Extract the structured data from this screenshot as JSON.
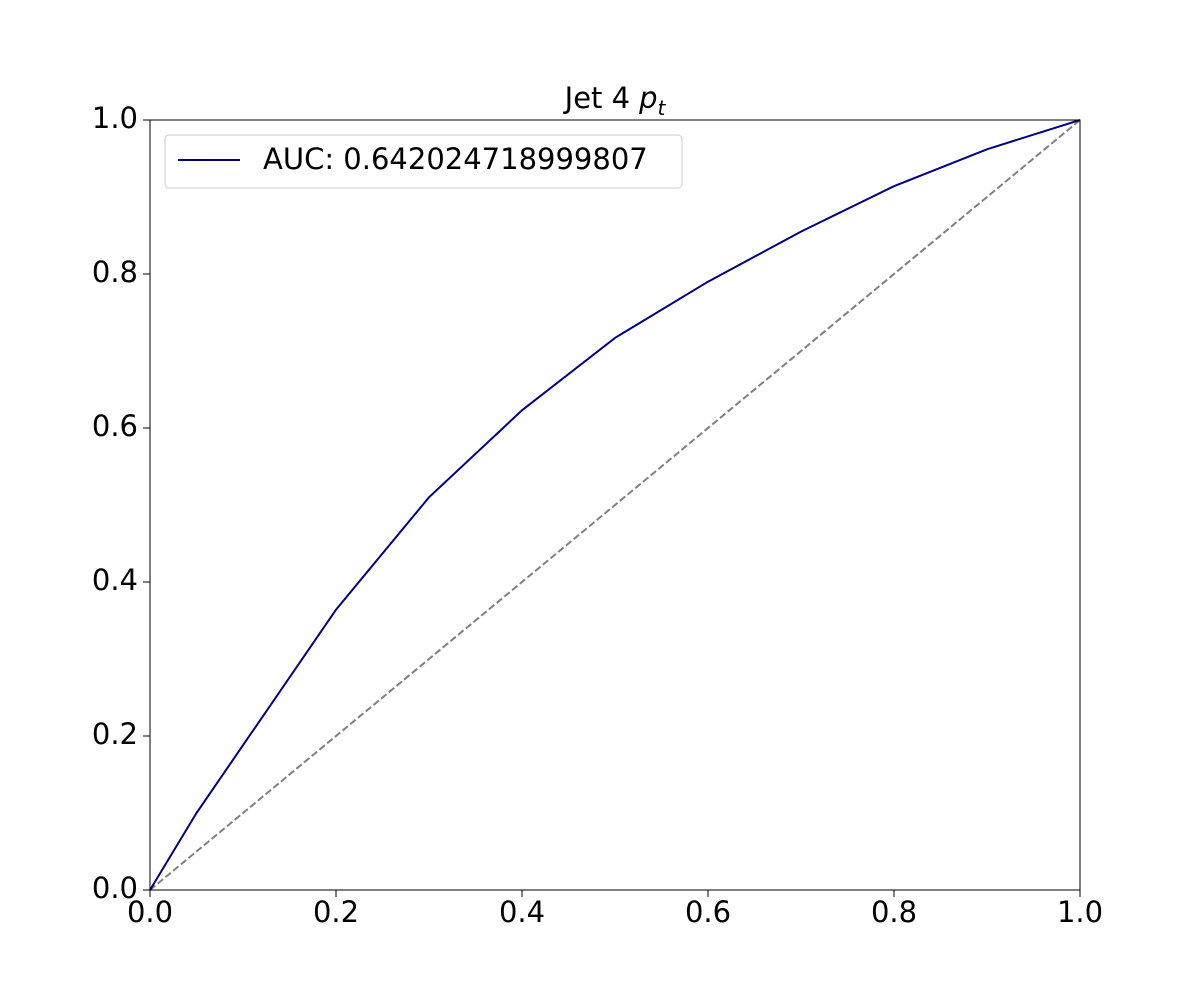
{
  "chart_data": {
    "type": "line",
    "title": [
      "Jet 4",
      "p",
      "t"
    ],
    "x": [
      0,
      0.05,
      0.1,
      0.2,
      0.3,
      0.4,
      0.5,
      0.6,
      0.7,
      0.8,
      0.9,
      1.0
    ],
    "series": [
      {
        "name": "AUC: 0.642024718999807",
        "color": "#000080",
        "values": [
          0,
          0.1,
          0.188,
          0.364,
          0.51,
          0.623,
          0.717,
          0.79,
          0.855,
          0.914,
          0.962,
          1.0
        ]
      }
    ],
    "reference_line": {
      "x": [
        0,
        1
      ],
      "values": [
        0,
        1
      ],
      "color": "#808080",
      "dashed": true
    },
    "xlim": [
      0,
      1
    ],
    "ylim": [
      0,
      1
    ],
    "xticks": [
      {
        "value": 0,
        "label": "0.0"
      },
      {
        "value": 0.2,
        "label": "0.2"
      },
      {
        "value": 0.4,
        "label": "0.4"
      },
      {
        "value": 0.6,
        "label": "0.6"
      },
      {
        "value": 0.8,
        "label": "0.8"
      },
      {
        "value": 1,
        "label": "1.0"
      }
    ],
    "yticks": [
      {
        "value": 0,
        "label": "0.0"
      },
      {
        "value": 0.2,
        "label": "0.2"
      },
      {
        "value": 0.4,
        "label": "0.4"
      },
      {
        "value": 0.6,
        "label": "0.6"
      },
      {
        "value": 0.8,
        "label": "0.8"
      },
      {
        "value": 1,
        "label": "1.0"
      }
    ],
    "legend": "upper left",
    "grid": false
  }
}
